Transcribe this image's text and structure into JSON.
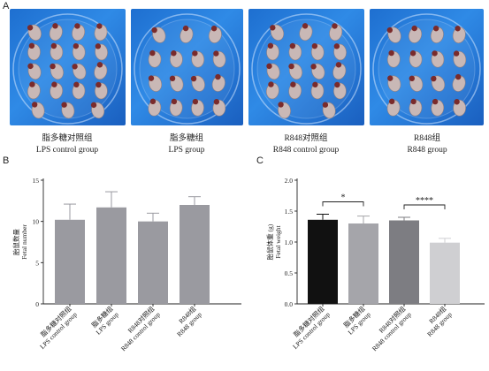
{
  "panels": {
    "a": "A",
    "b": "B",
    "c": "C"
  },
  "photos": [
    {
      "cn": "脂多糖对照组",
      "en": "LPS control group"
    },
    {
      "cn": "脂多糖组",
      "en": "LPS group"
    },
    {
      "cn": "R848对照组",
      "en": "R848 control group"
    },
    {
      "cn": "R848组",
      "en": "R848 group"
    }
  ],
  "colors": {
    "photo_bg": "#2a7fe0",
    "bar_b": "#9a9aa0",
    "bars_c": [
      "#111111",
      "#a5a5aa",
      "#7d7d82",
      "#cfcfd2"
    ]
  },
  "chart_data": [
    {
      "type": "bar",
      "ylabel_cn": "胎鼠数量",
      "ylabel_en": "Fetal number",
      "ylim": [
        0,
        15
      ],
      "yticks": [
        "0",
        "5",
        "10",
        "15"
      ],
      "categories": [
        {
          "cn": "脂多糖对照组",
          "en": "LPS control group"
        },
        {
          "cn": "脂多糖组",
          "en": "LPS group"
        },
        {
          "cn": "R848对照组",
          "en": "R848 control group"
        },
        {
          "cn": "R848组",
          "en": "R848 group"
        }
      ],
      "values": [
        10.2,
        11.7,
        10.0,
        12.0
      ],
      "errors": [
        1.9,
        1.9,
        1.0,
        1.0
      ]
    },
    {
      "type": "bar",
      "ylabel_cn": "胎鼠体重 (g)",
      "ylabel_en": "Fetal weight",
      "ylim": [
        0,
        2.0
      ],
      "yticks": [
        "0.0",
        "0.5",
        "1.0",
        "1.5",
        "2.0"
      ],
      "categories": [
        {
          "cn": "脂多糖对照组",
          "en": "LPS control group"
        },
        {
          "cn": "脂多糖组",
          "en": "LPS group"
        },
        {
          "cn": "R848对照组",
          "en": "R848 control group"
        },
        {
          "cn": "R848组",
          "en": "R848 group"
        }
      ],
      "values": [
        1.36,
        1.3,
        1.35,
        0.99
      ],
      "errors": [
        0.09,
        0.12,
        0.05,
        0.07
      ],
      "annotations": [
        {
          "from": 0,
          "to": 1,
          "label": "*"
        },
        {
          "from": 2,
          "to": 3,
          "label": "****"
        }
      ]
    }
  ]
}
